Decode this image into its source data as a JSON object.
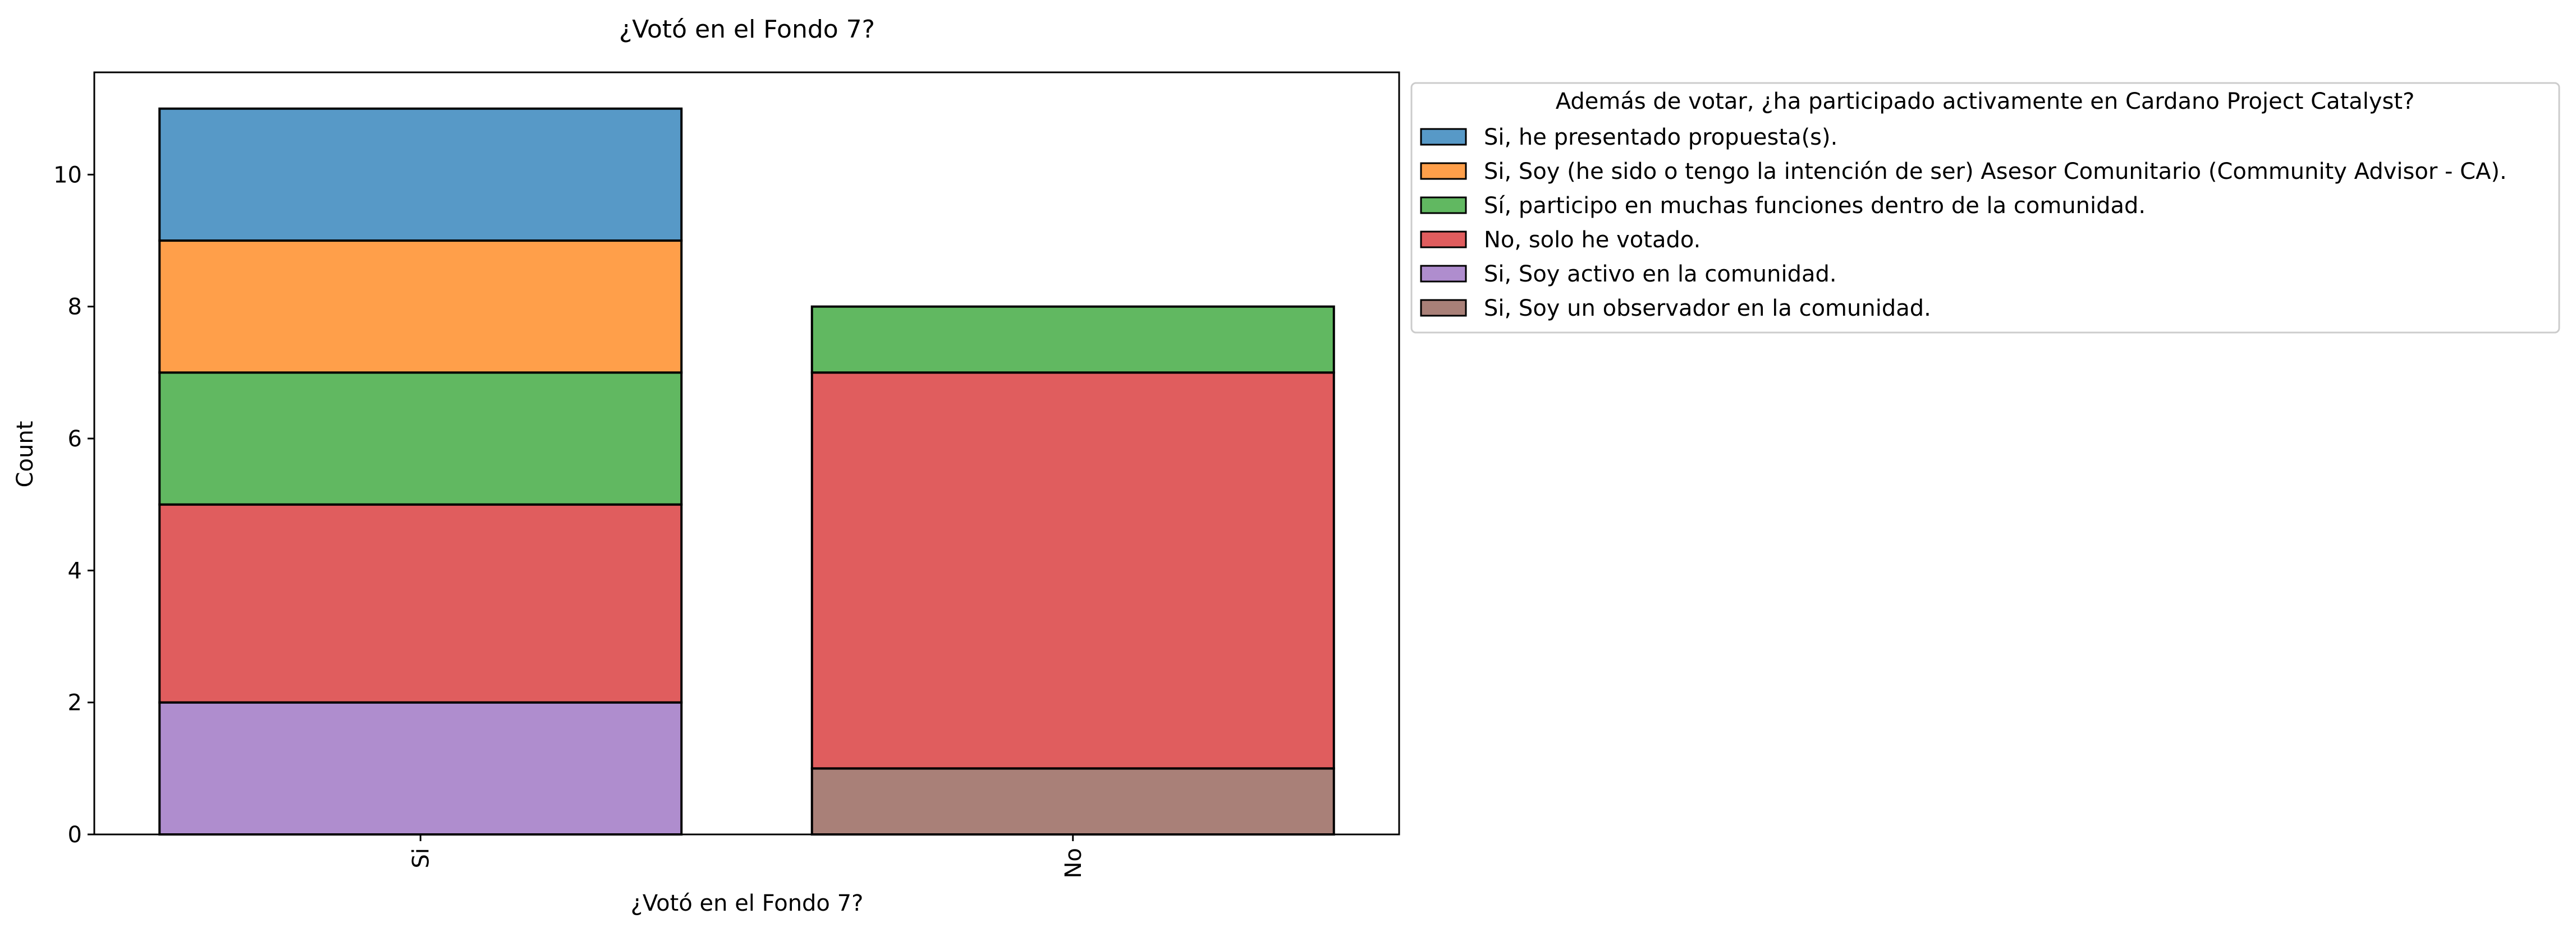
{
  "chart_data": {
    "type": "bar",
    "stacked": true,
    "title": "¿Votó en el Fondo 7?",
    "xlabel": "¿Votó en el Fondo 7?",
    "ylabel": "Count",
    "categories": [
      "Si",
      "No"
    ],
    "ylim": [
      0,
      11.55
    ],
    "yticks": [
      0,
      2,
      4,
      6,
      8,
      10
    ],
    "grid": false,
    "legend": {
      "title": "Además de votar, ¿ha participado activamente en Cardano Project Catalyst?",
      "placement": "outside upper right"
    },
    "series": [
      {
        "name": "Si, he presentado propuesta(s).",
        "color": "#1f77b4",
        "values": [
          2,
          0
        ]
      },
      {
        "name": "Si, Soy (he sido o tengo la intención de ser) Asesor Comunitario (Community Advisor - CA).",
        "color": "#ff7f0e",
        "values": [
          2,
          0
        ]
      },
      {
        "name": "Sí, participo en muchas funciones dentro de la comunidad.",
        "color": "#2ca02c",
        "values": [
          2,
          1
        ]
      },
      {
        "name": "No, solo he votado.",
        "color": "#d62728",
        "values": [
          3,
          6
        ]
      },
      {
        "name": "Si, Soy activo en la comunidad.",
        "color": "#9467bd",
        "values": [
          2,
          0
        ]
      },
      {
        "name": "Si, Soy un observador en la comunidad.",
        "color": "#8c564b",
        "values": [
          0,
          1
        ]
      }
    ]
  }
}
